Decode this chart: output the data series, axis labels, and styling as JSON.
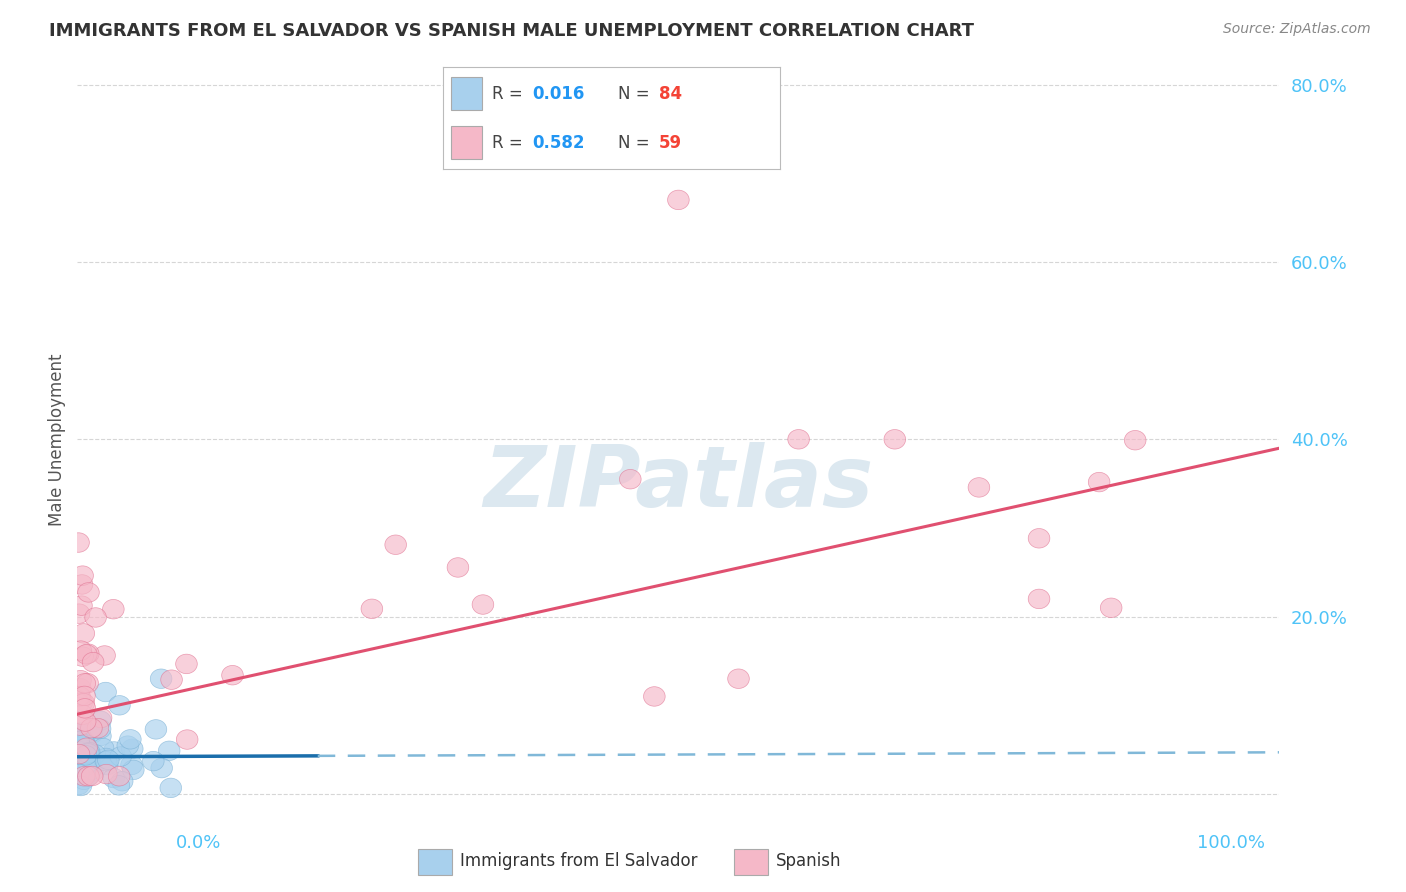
{
  "title": "IMMIGRANTS FROM EL SALVADOR VS SPANISH MALE UNEMPLOYMENT CORRELATION CHART",
  "source": "Source: ZipAtlas.com",
  "ylabel": "Male Unemployment",
  "series1_label": "Immigrants from El Salvador",
  "series1_color": "#a8d0ed",
  "series1_edge": "#7ab0d4",
  "series2_label": "Spanish",
  "series2_color": "#f5b8c8",
  "series2_edge": "#e07090",
  "series1_R": "0.016",
  "series1_N": "84",
  "series2_R": "0.582",
  "series2_N": "59",
  "legend_R_color": "#2196F3",
  "legend_N_color": "#f44336",
  "background_color": "#ffffff",
  "grid_color": "#cccccc",
  "blue_trend_color": "#1a6eab",
  "blue_trend_dash_color": "#80b8d8",
  "pink_trend_color": "#e05070",
  "watermark_color": "#dce8f0",
  "ytick_color": "#4fc3f7",
  "xtick_color": "#4fc3f7",
  "title_color": "#333333",
  "source_color": "#888888",
  "ylabel_color": "#555555"
}
